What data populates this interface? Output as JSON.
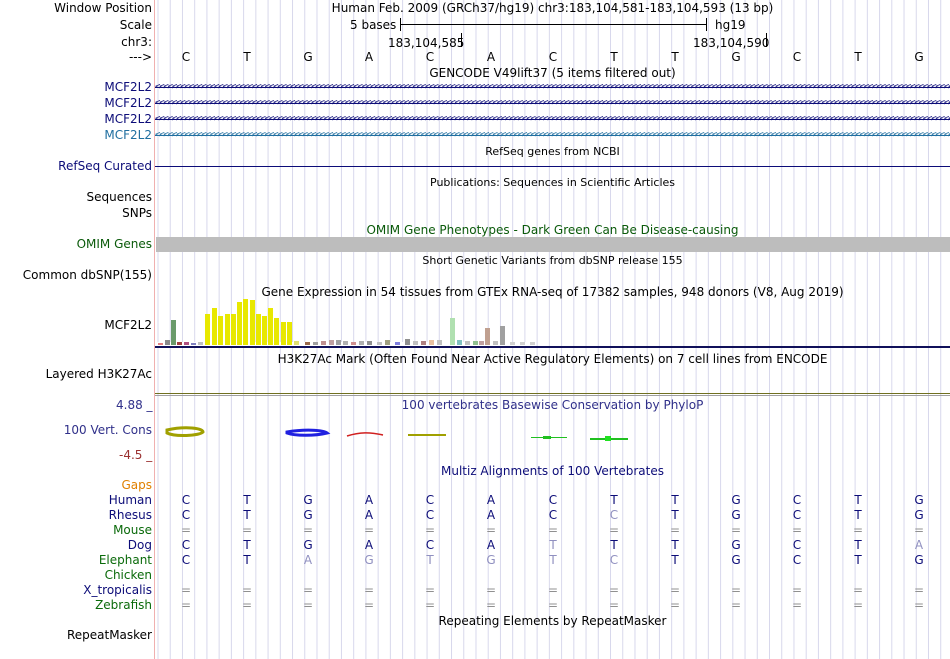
{
  "header": {
    "window_position_label": "Window Position",
    "window_position": "Human Feb. 2009 (GRCh37/hg19)   chr3:183,104,581-183,104,593 (13 bp)",
    "scale_label": "Scale",
    "scale_value": "5 bases",
    "scale_assembly": "hg19",
    "chrom_label": "chr3:",
    "coord_1": "183,104,585",
    "coord_2": "183,104,590",
    "strand_label": "--->"
  },
  "bases": [
    "C",
    "T",
    "G",
    "A",
    "C",
    "A",
    "C",
    "T",
    "T",
    "G",
    "C",
    "T",
    "G"
  ],
  "tracks": {
    "gencode": {
      "title": "GENCODE V49lift37 (5 items filtered out)",
      "genes": [
        "MCF2L2",
        "MCF2L2",
        "MCF2L2",
        "MCF2L2"
      ],
      "colors": [
        "#0c0c78",
        "#0c0c78",
        "#0c0c78",
        "#206fa0"
      ]
    },
    "refseq": {
      "label": "RefSeq Curated",
      "title": "RefSeq genes from NCBI",
      "color": "#0c0c78"
    },
    "publications": {
      "label_1": "Sequences",
      "label_2": "SNPs",
      "title": "Publications: Sequences in Scientific Articles"
    },
    "omim": {
      "label": "OMIM Genes",
      "title": "OMIM Gene Phenotypes - Dark Green Can Be Disease-causing",
      "color": "#0a5a0a"
    },
    "dbsnp": {
      "label": "Common dbSNP(155)",
      "title": "Short Genetic Variants from dbSNP release 155"
    },
    "gtex": {
      "title": "Gene Expression in 54 tissues from GTEx RNA-seq of 17382 samples, 948 donors (V8, Aug 2019)",
      "label": "MCF2L2"
    },
    "h3k27ac": {
      "label": "Layered H3K27Ac",
      "title": "H3K27Ac Mark (Often Found Near Active Regulatory Elements) on 7 cell lines from ENCODE"
    },
    "phylop": {
      "label": "100 Vert. Cons",
      "max": "4.88 _",
      "min": "-4.5 _",
      "title": "100 vertebrates Basewise Conservation by PhyloP",
      "color": "#30308a"
    },
    "multiz": {
      "title": "Multiz Alignments of 100 Vertebrates",
      "gaps_label": "Gaps",
      "species": [
        {
          "name": "Human",
          "color": "#0c0c78",
          "seq": [
            "C",
            "T",
            "G",
            "A",
            "C",
            "A",
            "C",
            "T",
            "T",
            "G",
            "C",
            "T",
            "G"
          ]
        },
        {
          "name": "Rhesus",
          "color": "#0c0c78",
          "seq": [
            "C",
            "T",
            "G",
            "A",
            "C",
            "A",
            "C",
            "C",
            "T",
            "G",
            "C",
            "T",
            "G"
          ]
        },
        {
          "name": "Mouse",
          "color": "#0a6a0a",
          "seq": [
            "=",
            "=",
            "=",
            "=",
            "=",
            "=",
            "=",
            "=",
            "=",
            "=",
            "=",
            "=",
            "="
          ]
        },
        {
          "name": "Dog",
          "color": "#0c0c78",
          "seq": [
            "C",
            "T",
            "G",
            "A",
            "C",
            "A",
            "T",
            "T",
            "T",
            "G",
            "C",
            "T",
            "A"
          ]
        },
        {
          "name": "Elephant",
          "color": "#0a6a0a",
          "seq": [
            "C",
            "T",
            "A",
            "G",
            "T",
            "G",
            "T",
            "C",
            "T",
            "G",
            "C",
            "T",
            "G"
          ]
        },
        {
          "name": "Chicken",
          "color": "#0a6a0a",
          "seq": [
            "",
            "",
            "",
            "",
            "",
            "",
            "",
            "",
            "",
            "",
            "",
            "",
            ""
          ]
        },
        {
          "name": "X_tropicalis",
          "color": "#0c0c78",
          "seq": [
            "=",
            "=",
            "=",
            "=",
            "=",
            "=",
            "=",
            "=",
            "=",
            "=",
            "=",
            "=",
            "="
          ]
        },
        {
          "name": "Zebrafish",
          "color": "#0a6a0a",
          "seq": [
            "=",
            "=",
            "=",
            "=",
            "=",
            "=",
            "=",
            "=",
            "=",
            "=",
            "=",
            "=",
            "="
          ]
        }
      ]
    },
    "repeatmasker": {
      "label": "RepeatMasker",
      "title": "Repeating Elements by RepeatMasker"
    }
  }
}
